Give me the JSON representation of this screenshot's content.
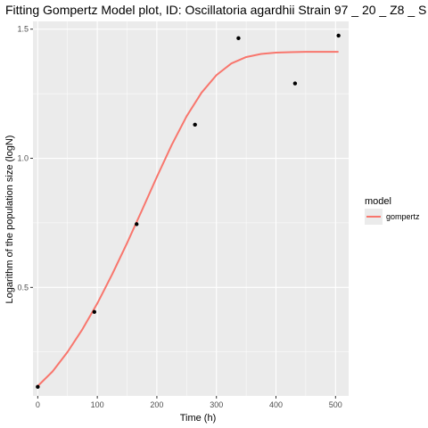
{
  "chart_data": {
    "type": "scatter",
    "title": "Fitting Gompertz Model plot, ID: Oscillatoria agardhii Strain 97 _ 20 _ Z8 _ S",
    "xlabel": "Time (h)",
    "ylabel": "Logarithm of the population size (logN)",
    "xlim": [
      -8,
      522
    ],
    "ylim": [
      0.08,
      1.53
    ],
    "x_ticks": [
      0,
      100,
      200,
      300,
      400,
      500
    ],
    "x_tick_labels": [
      "0",
      "100",
      "200",
      "300",
      "400",
      "500"
    ],
    "y_ticks": [
      0.5,
      1.0,
      1.5
    ],
    "y_tick_labels": [
      "0.5",
      "1.0",
      "1.5"
    ],
    "grid": true,
    "points": {
      "x": [
        0,
        95,
        166,
        264,
        337,
        432,
        505
      ],
      "y": [
        0.115,
        0.405,
        0.745,
        1.13,
        1.465,
        1.29,
        1.475
      ]
    },
    "series": [
      {
        "name": "gompertz",
        "color": "#F8766D",
        "x": [
          0,
          25,
          50,
          75,
          100,
          125,
          150,
          175,
          200,
          225,
          250,
          275,
          300,
          325,
          350,
          375,
          400,
          425,
          450,
          475,
          505
        ],
        "y": [
          0.118,
          0.175,
          0.25,
          0.338,
          0.438,
          0.551,
          0.672,
          0.799,
          0.928,
          1.052,
          1.163,
          1.254,
          1.322,
          1.367,
          1.392,
          1.404,
          1.409,
          1.411,
          1.412,
          1.412,
          1.412
        ]
      }
    ],
    "legend": {
      "title": "model",
      "placement": "right",
      "entries": [
        "gompertz"
      ]
    }
  }
}
